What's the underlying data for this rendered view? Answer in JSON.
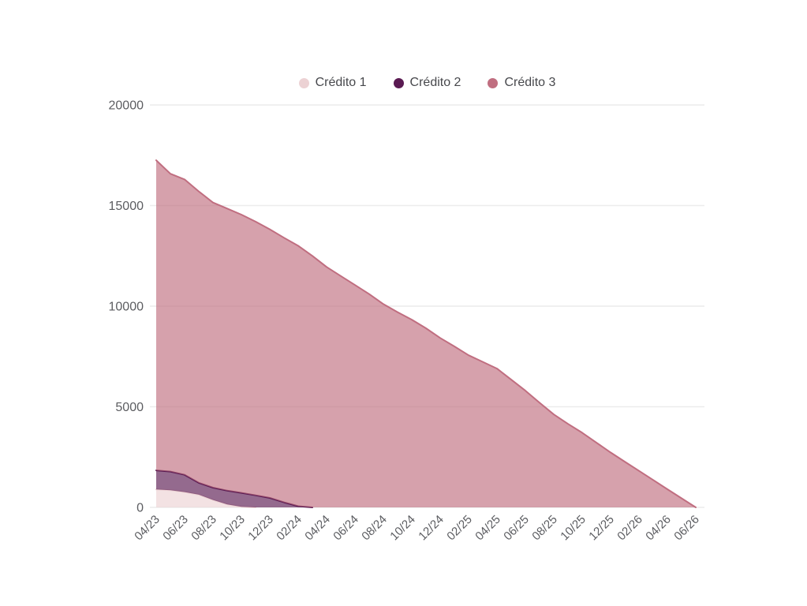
{
  "page": {
    "background": "#ffffff"
  },
  "colors": {
    "grid_line": "#ececec",
    "axis_label": "#5c5d61",
    "legend_text": "#47484c"
  },
  "legend": {
    "items": [
      {
        "label": "Crédito 1",
        "color": "#ecd2d4"
      },
      {
        "label": "Crédito 2",
        "color": "#5a1a52"
      },
      {
        "label": "Crédito 3",
        "color": "#c06e80"
      }
    ]
  },
  "chart_data": {
    "type": "area",
    "stacked": true,
    "title": "",
    "xlabel": "",
    "ylabel": "",
    "grid": true,
    "legend_position": "top",
    "fill_opacity": 0.65,
    "ylim": [
      0,
      20000
    ],
    "y_ticks": [
      0,
      5000,
      10000,
      15000,
      20000
    ],
    "x_tick_every": 2,
    "categories": [
      "04/23",
      "05/23",
      "06/23",
      "07/23",
      "08/23",
      "09/23",
      "10/23",
      "11/23",
      "12/23",
      "01/24",
      "02/24",
      "03/24",
      "04/24",
      "05/24",
      "06/24",
      "07/24",
      "08/24",
      "09/24",
      "10/24",
      "11/24",
      "12/24",
      "01/25",
      "02/25",
      "03/25",
      "04/25",
      "05/25",
      "06/25",
      "07/25",
      "08/25",
      "09/25",
      "10/25",
      "11/25",
      "12/25",
      "01/26",
      "02/26",
      "03/26",
      "04/26",
      "05/26",
      "06/26"
    ],
    "series": [
      {
        "name": "Crédito 1",
        "color": "#ecd2d4",
        "values": [
          890,
          850,
          760,
          630,
          370,
          150,
          30,
          0,
          0,
          0,
          0,
          0,
          0,
          0,
          0,
          0,
          0,
          0,
          0,
          0,
          0,
          0,
          0,
          0,
          0,
          0,
          0,
          0,
          0,
          0,
          0,
          0,
          0,
          0,
          0,
          0,
          0,
          0,
          0
        ]
      },
      {
        "name": "Crédito 2",
        "color": "#5a1a52",
        "values": [
          950,
          930,
          860,
          590,
          610,
          680,
          690,
          600,
          470,
          250,
          60,
          0,
          0,
          0,
          0,
          0,
          0,
          0,
          0,
          0,
          0,
          0,
          0,
          0,
          0,
          0,
          0,
          0,
          0,
          0,
          0,
          0,
          0,
          0,
          0,
          0,
          0,
          0,
          0
        ]
      },
      {
        "name": "Crédito 3",
        "color": "#c06e80",
        "values": [
          15410,
          14800,
          14680,
          14480,
          14170,
          14020,
          13830,
          13600,
          13350,
          13150,
          12940,
          12500,
          11950,
          11500,
          11050,
          10600,
          10100,
          9700,
          9330,
          8900,
          8420,
          8000,
          7560,
          7230,
          6900,
          6350,
          5800,
          5200,
          4620,
          4150,
          3710,
          3220,
          2730,
          2270,
          1815,
          1360,
          900,
          450,
          0
        ]
      }
    ]
  }
}
